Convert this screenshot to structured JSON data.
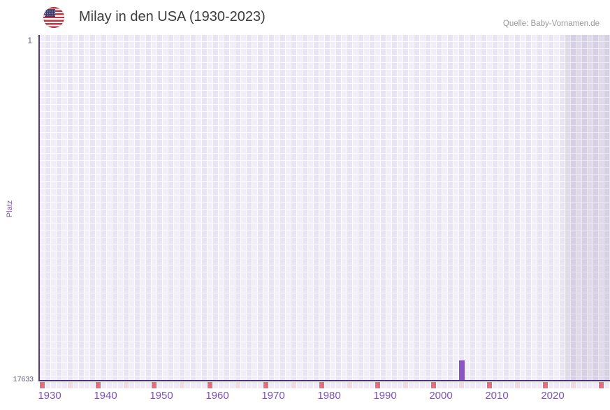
{
  "header": {
    "title": "Milay in den USA (1930-2023)",
    "flag_icon": "us-flag",
    "source": "Quelle: Baby-Vornamen.de"
  },
  "chart_data": {
    "type": "bar",
    "title": "Milay in den USA (1930-2023)",
    "xlabel": "",
    "ylabel": "Platz",
    "y_axis": {
      "top": 1,
      "bottom": 17633,
      "inverted": true,
      "tick_labels": [
        "1",
        "17633"
      ]
    },
    "x_axis": {
      "start_year": 1930,
      "last_data_year": 2023,
      "axis_end_year": 2031,
      "tick_years": [
        1930,
        1940,
        1950,
        1960,
        1970,
        1980,
        1990,
        2000,
        2010,
        2020
      ],
      "decade_mark_years": [
        1930,
        1940,
        1950,
        1960,
        1970,
        1980,
        1990,
        2000,
        2010,
        2020,
        2030
      ],
      "mid_decade_mark_years": [
        1935,
        1945,
        1955,
        1965,
        1975,
        1985,
        1995,
        2005,
        2015,
        2025
      ],
      "no_data_from_year": 2024
    },
    "series": [
      {
        "name": "Platz von Milay in den USA",
        "points": [
          {
            "year": 2005,
            "rank": 16633
          }
        ]
      }
    ],
    "legend": false,
    "grid": true
  },
  "colors": {
    "bar": "#8a56c4",
    "axis_line": "#4f3183",
    "tick_label": "#7b55b0",
    "grid_cell_light": "#f2edfa",
    "grid_cell_dark": "#e9e3f4",
    "no_data_overlay": "rgba(98,86,130,0.13)",
    "decade_mark": "#e26e7b",
    "mid_decade_mark": "#f3d8df",
    "title_text": "#3c3c3c",
    "source_text": "#999999"
  }
}
